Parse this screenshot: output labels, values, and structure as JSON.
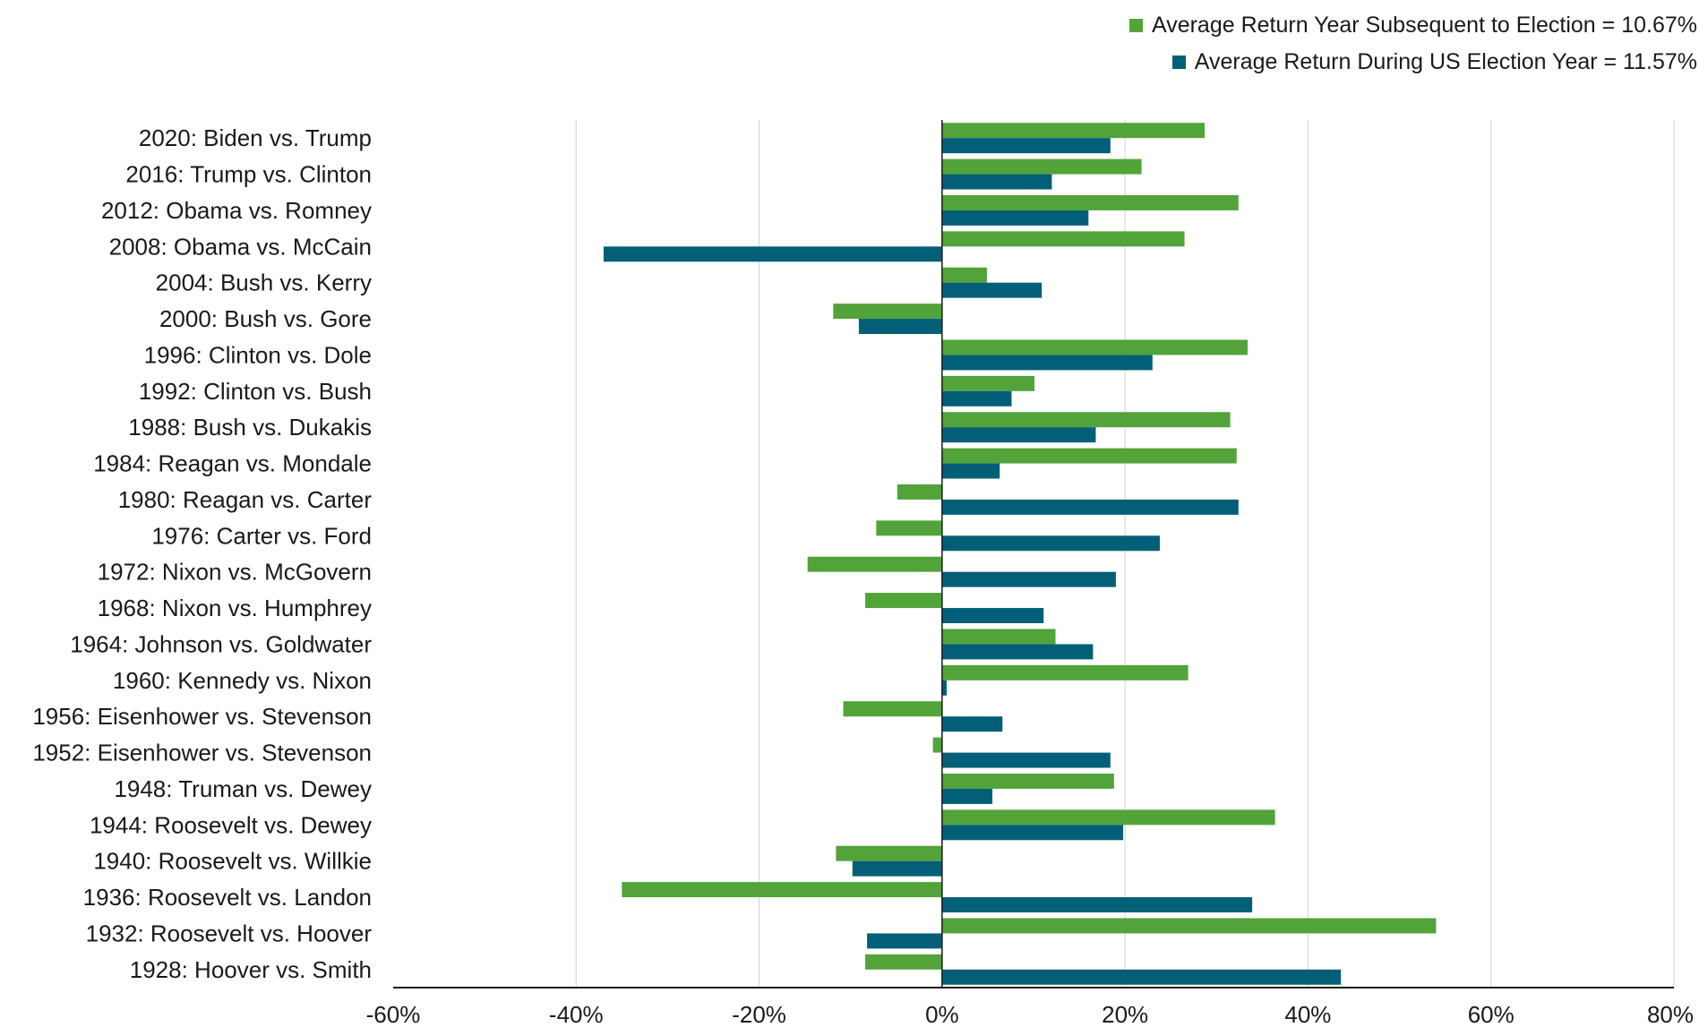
{
  "chart_data": {
    "type": "bar",
    "orientation": "horizontal",
    "categories": [
      "2020: Biden vs. Trump",
      "2016: Trump vs. Clinton",
      "2012: Obama vs. Romney ",
      "2008: Obama vs. McCain",
      "2004: Bush vs. Kerry",
      "2000: Bush vs. Gore",
      "1996: Clinton vs. Dole",
      "1992: Clinton vs. Bush",
      "1988: Bush vs. Dukakis",
      "1984: Reagan vs. Mondale",
      "1980: Reagan vs. Carter",
      "1976: Carter vs. Ford",
      "1972: Nixon vs. McGovern",
      "1968: Nixon vs. Humphrey",
      "1964: Johnson vs. Goldwater",
      "1960: Kennedy vs. Nixon",
      "1956: Eisenhower vs. Stevenson",
      "1952: Eisenhower vs. Stevenson",
      "1948: Truman vs. Dewey",
      "1944: Roosevelt vs. Dewey",
      "1940: Roosevelt vs. Willkie",
      "1936: Roosevelt vs. Landon",
      "1932: Roosevelt vs. Hoover",
      "1928: Hoover vs. Smith"
    ],
    "series": [
      {
        "name": "Average Return Year Subsequent to Election = 10.67%",
        "color": "#52a33a",
        "values": [
          28.7,
          21.8,
          32.4,
          26.5,
          4.9,
          -11.9,
          33.4,
          10.1,
          31.5,
          32.2,
          -4.9,
          -7.2,
          -14.7,
          -8.4,
          12.4,
          26.9,
          -10.8,
          -1.0,
          18.8,
          36.4,
          -11.6,
          -35.0,
          54.0,
          -8.4
        ]
      },
      {
        "name": "Average Return During US Election Year = 11.57%",
        "color": "#025f77",
        "values": [
          18.4,
          12.0,
          16.0,
          -37.0,
          10.9,
          -9.1,
          23.0,
          7.6,
          16.8,
          6.3,
          32.4,
          23.8,
          19.0,
          11.1,
          16.5,
          0.5,
          6.6,
          18.4,
          5.5,
          19.8,
          -9.8,
          33.9,
          -8.2,
          43.6
        ]
      }
    ],
    "xlim": [
      -60,
      80
    ],
    "ticks": [
      -60,
      -40,
      -20,
      0,
      20,
      40,
      60,
      80
    ],
    "tick_labels": [
      "-60%",
      "-40%",
      "-20%",
      "0%",
      "20%",
      "40%",
      "60%",
      "80%"
    ],
    "title": "",
    "xlabel": "",
    "ylabel": "",
    "grid": "vertical",
    "legend_position": "top-right"
  }
}
